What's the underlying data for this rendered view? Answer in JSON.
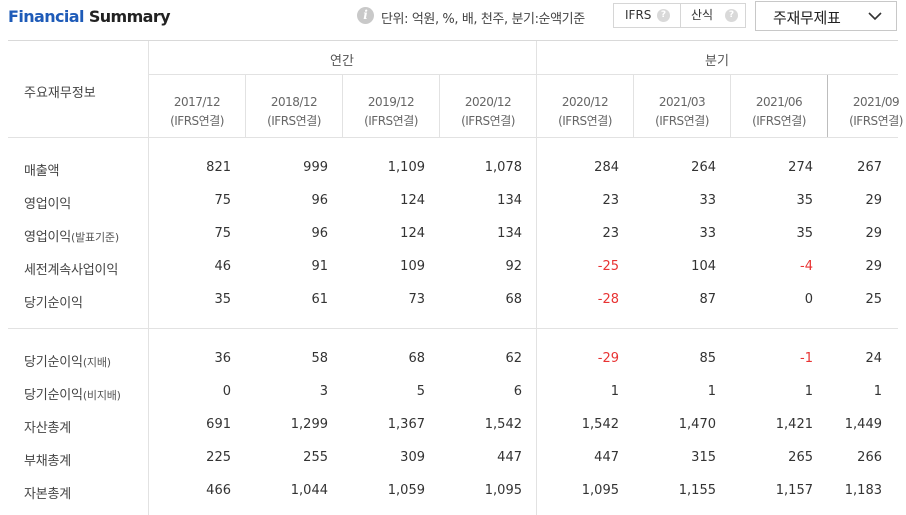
{
  "header": {
    "title_part1": "Financial",
    "title_part2": "Summary",
    "unit_text": "단위: 억원, %, 배, 천주, 분기:순액기준",
    "ifrs_label": "IFRS",
    "calc_label": "산식",
    "statement_select": "주재무제표"
  },
  "table": {
    "row_header": "주요재무정보",
    "group_annual": "연간",
    "group_quarter": "분기",
    "periods": [
      {
        "date": "2017/12",
        "basis": "(IFRS연결)"
      },
      {
        "date": "2018/12",
        "basis": "(IFRS연결)"
      },
      {
        "date": "2019/12",
        "basis": "(IFRS연결)"
      },
      {
        "date": "2020/12",
        "basis": "(IFRS연결)"
      },
      {
        "date": "2020/12",
        "basis": "(IFRS연결)"
      },
      {
        "date": "2021/03",
        "basis": "(IFRS연결)"
      },
      {
        "date": "2021/06",
        "basis": "(IFRS연결)"
      },
      {
        "date": "2021/09",
        "basis": "(IFRS연결)"
      }
    ],
    "rows": [
      {
        "label": "매출액",
        "sub": "",
        "values": [
          "821",
          "999",
          "1,109",
          "1,078",
          "284",
          "264",
          "274",
          "267"
        ]
      },
      {
        "label": "영업이익",
        "sub": "",
        "values": [
          "75",
          "96",
          "124",
          "134",
          "23",
          "33",
          "35",
          "29"
        ]
      },
      {
        "label": "영업이익",
        "sub": "(발표기준)",
        "values": [
          "75",
          "96",
          "124",
          "134",
          "23",
          "33",
          "35",
          "29"
        ]
      },
      {
        "label": "세전계속사업이익",
        "sub": "",
        "values": [
          "46",
          "91",
          "109",
          "92",
          "-25",
          "104",
          "-4",
          "29"
        ]
      },
      {
        "label": "당기순이익",
        "sub": "",
        "values": [
          "35",
          "61",
          "73",
          "68",
          "-28",
          "87",
          "0",
          "25"
        ]
      },
      {
        "label": "당기순이익",
        "sub": "(지배)",
        "values": [
          "36",
          "58",
          "68",
          "62",
          "-29",
          "85",
          "-1",
          "24"
        ]
      },
      {
        "label": "당기순이익",
        "sub": "(비지배)",
        "values": [
          "0",
          "3",
          "5",
          "6",
          "1",
          "1",
          "1",
          "1"
        ]
      },
      {
        "label": "자산총계",
        "sub": "",
        "values": [
          "691",
          "1,299",
          "1,367",
          "1,542",
          "1,542",
          "1,470",
          "1,421",
          "1,449"
        ]
      },
      {
        "label": "부채총계",
        "sub": "",
        "values": [
          "225",
          "255",
          "309",
          "447",
          "447",
          "315",
          "265",
          "266"
        ]
      },
      {
        "label": "자본총계",
        "sub": "",
        "values": [
          "466",
          "1,044",
          "1,059",
          "1,095",
          "1,095",
          "1,155",
          "1,157",
          "1,183"
        ]
      }
    ],
    "colors": {
      "negative": "#e83333",
      "title_blue": "#1e5bb8"
    }
  }
}
